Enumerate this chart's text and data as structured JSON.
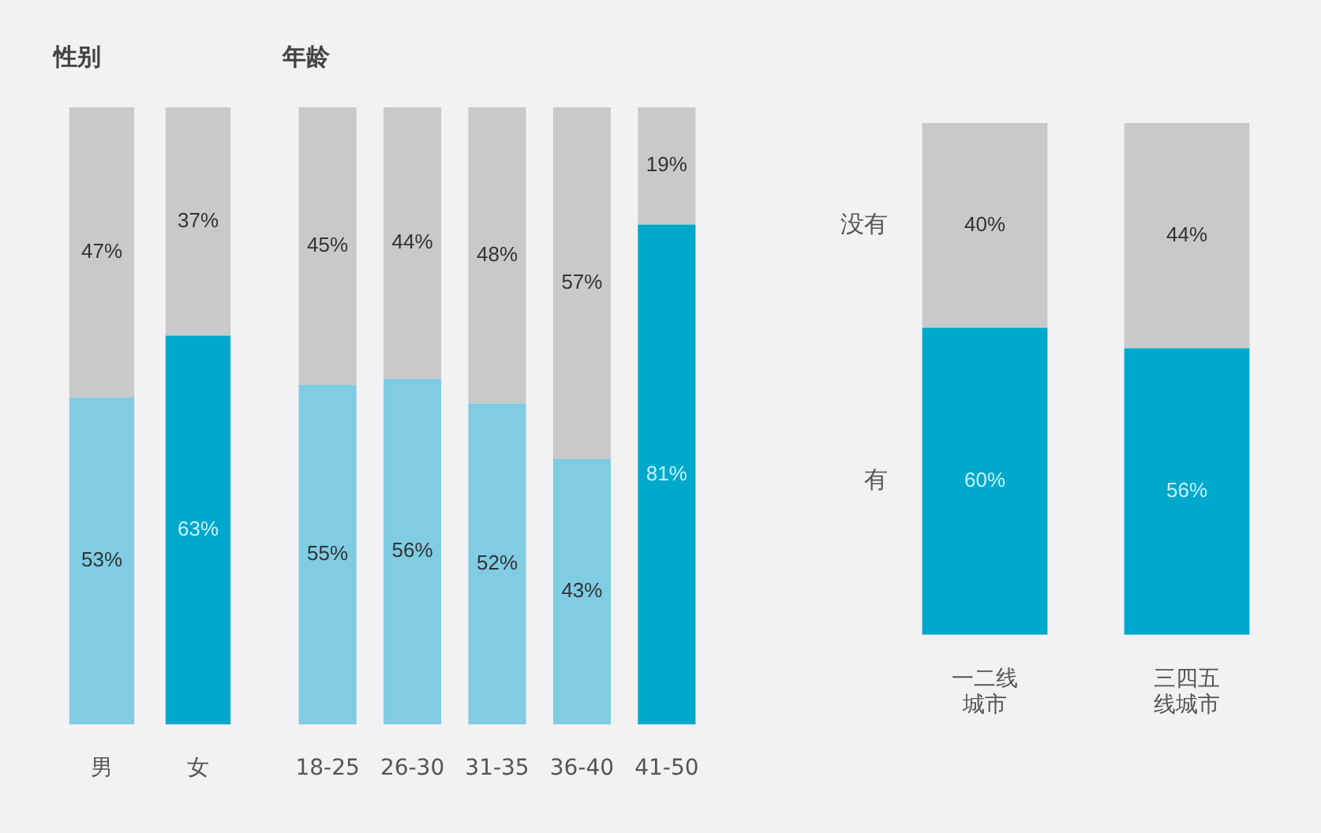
{
  "chart_data": [
    {
      "type": "bar",
      "title": "性别",
      "stacked": true,
      "categories": [
        "男",
        "女"
      ],
      "series": [
        {
          "colors": [
            "#7fcce3",
            "#00a9cc"
          ],
          "values": [
            53,
            63
          ],
          "value_labels": [
            "53%",
            "63%"
          ]
        },
        {
          "color": "#c8c9cb",
          "values": [
            47,
            37
          ],
          "value_labels": [
            "47%",
            "37%"
          ]
        }
      ]
    },
    {
      "type": "bar",
      "title": "年龄",
      "stacked": true,
      "categories": [
        "18-25",
        "26-30",
        "31-35",
        "36-40",
        "41-50"
      ],
      "series": [
        {
          "colors": [
            "#7fcce3",
            "#7fcce3",
            "#7fcce3",
            "#7fcce3",
            "#00a9cc"
          ],
          "values": [
            55,
            56,
            52,
            43,
            81
          ],
          "value_labels": [
            "55%",
            "56%",
            "52%",
            "43%",
            "81%"
          ]
        },
        {
          "color": "#c8c9cb",
          "values": [
            45,
            44,
            48,
            57,
            19
          ],
          "value_labels": [
            "45%",
            "44%",
            "48%",
            "57%",
            "19%"
          ]
        }
      ]
    },
    {
      "type": "bar",
      "stacked": true,
      "categories": [
        "一二线城市",
        "三四五线城市"
      ],
      "series": [
        {
          "name": "有",
          "color": "#00a9cc",
          "values": [
            60,
            56
          ],
          "value_labels": [
            "60%",
            "56%"
          ]
        },
        {
          "name": "没有",
          "color": "#c8c9cb",
          "values": [
            40,
            44
          ],
          "value_labels": [
            "40%",
            "44%"
          ]
        }
      ]
    }
  ]
}
